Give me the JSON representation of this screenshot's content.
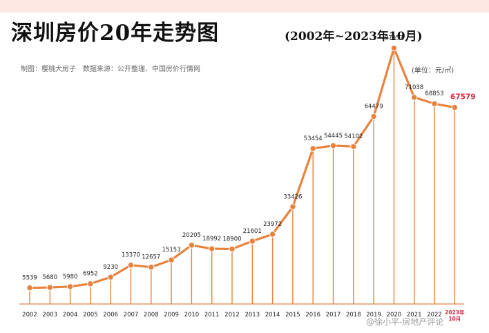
{
  "header": {
    "title": "深圳房价20年走势图",
    "subtitle": "(2002年~2023年10月)",
    "source": "制图：樱桃大房子　数据来源：公开整理、中国房价行情网"
  },
  "watermark": "@徐小平-房地产评论",
  "colors": {
    "line": "#e8823d",
    "point": "#e8823d",
    "highlight": "#d9263e",
    "axis": "#e8823d"
  },
  "chart_data": {
    "type": "line",
    "unit": "(单位：元/㎡)",
    "categories": [
      "2002",
      "2003",
      "2004",
      "2005",
      "2006",
      "2007",
      "2008",
      "2009",
      "2010",
      "2011",
      "2012",
      "2013",
      "2014",
      "2015",
      "2016",
      "2017",
      "2018",
      "2019",
      "2020",
      "2021",
      "2022",
      "2023年10月"
    ],
    "values": [
      5539,
      5680,
      5980,
      6952,
      9230,
      13370,
      12657,
      15153,
      20205,
      18992,
      18900,
      21601,
      23972,
      33426,
      53454,
      54445,
      54102,
      64479,
      87957,
      71038,
      68853,
      67579
    ],
    "highlight_last": true,
    "ylim": [
      0,
      95000
    ],
    "grid": false
  }
}
